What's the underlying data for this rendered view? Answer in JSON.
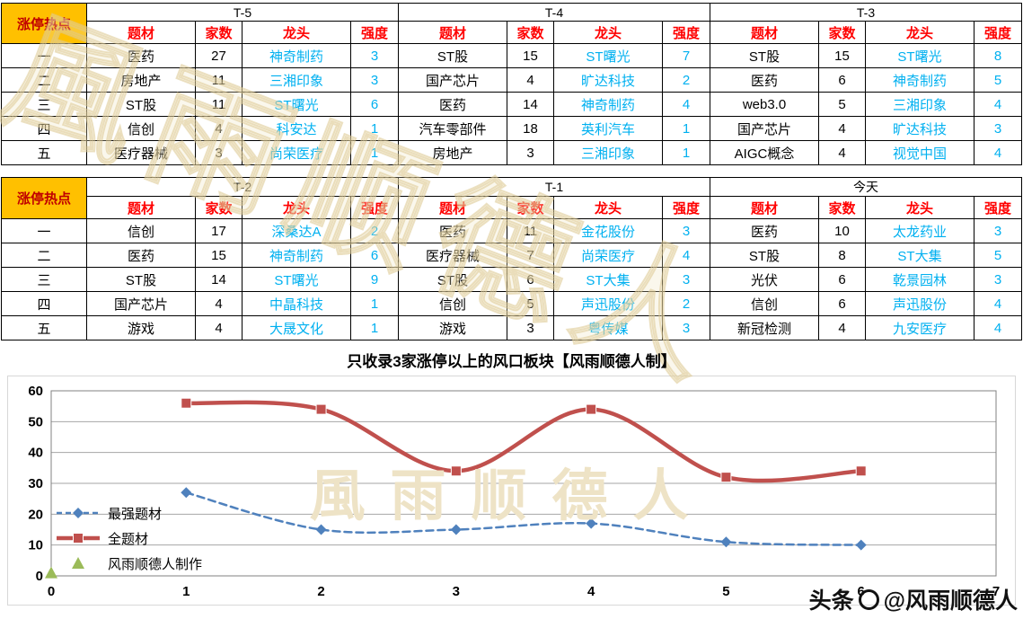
{
  "watermark": {
    "text": "風雨顺德人"
  },
  "tables": {
    "corner_label": "涨停热点",
    "columns": [
      "题材",
      "家数",
      "龙头",
      "强度"
    ],
    "row_labels": [
      "一",
      "二",
      "三",
      "四",
      "五"
    ],
    "blocks": [
      {
        "groups": [
          {
            "period": "T-5",
            "rows": [
              [
                "医药",
                "27",
                "神奇制药",
                "3"
              ],
              [
                "房地产",
                "11",
                "三湘印象",
                "3"
              ],
              [
                "ST股",
                "11",
                "ST曙光",
                "6"
              ],
              [
                "信创",
                "4",
                "科安达",
                "1"
              ],
              [
                "医疗器械",
                "3",
                "尚荣医疗",
                "1"
              ]
            ]
          },
          {
            "period": "T-4",
            "rows": [
              [
                "ST股",
                "15",
                "ST曙光",
                "7"
              ],
              [
                "国产芯片",
                "4",
                "旷达科技",
                "2"
              ],
              [
                "医药",
                "14",
                "神奇制药",
                "4"
              ],
              [
                "汽车零部件",
                "18",
                "英利汽车",
                "1"
              ],
              [
                "房地产",
                "3",
                "三湘印象",
                "1"
              ]
            ]
          },
          {
            "period": "T-3",
            "rows": [
              [
                "ST股",
                "15",
                "ST曙光",
                "8"
              ],
              [
                "医药",
                "6",
                "神奇制药",
                "5"
              ],
              [
                "web3.0",
                "5",
                "三湘印象",
                "4"
              ],
              [
                "国产芯片",
                "4",
                "旷达科技",
                "3"
              ],
              [
                "AIGC概念",
                "4",
                "视觉中国",
                "4"
              ]
            ]
          }
        ]
      },
      {
        "groups": [
          {
            "period": "T-2",
            "rows": [
              [
                "信创",
                "17",
                "深桑达A",
                "2"
              ],
              [
                "医药",
                "15",
                "神奇制药",
                "6"
              ],
              [
                "ST股",
                "14",
                "ST曙光",
                "9"
              ],
              [
                "国产芯片",
                "4",
                "中晶科技",
                "1"
              ],
              [
                "游戏",
                "4",
                "大晟文化",
                "1"
              ]
            ]
          },
          {
            "period": "T-1",
            "rows": [
              [
                "医药",
                "11",
                "金花股份",
                "3"
              ],
              [
                "医疗器械",
                "7",
                "尚荣医疗",
                "4"
              ],
              [
                "ST股",
                "6",
                "ST大集",
                "3"
              ],
              [
                "信创",
                "5",
                "声迅股份",
                "2"
              ],
              [
                "游戏",
                "3",
                "粤传媒",
                "3"
              ]
            ]
          },
          {
            "period": "今天",
            "rows": [
              [
                "医药",
                "10",
                "太龙药业",
                "3"
              ],
              [
                "ST股",
                "8",
                "ST大集",
                "5"
              ],
              [
                "光伏",
                "6",
                "乾景园林",
                "3"
              ],
              [
                "信创",
                "6",
                "声迅股份",
                "4"
              ],
              [
                "新冠检测",
                "4",
                "九安医疗",
                "4"
              ]
            ]
          }
        ]
      }
    ]
  },
  "caption": "只收录3家涨停以上的风口板块【风雨顺德人制】",
  "chart_data": {
    "type": "line",
    "title": "",
    "xlabel": "",
    "ylabel": "",
    "xlim": [
      0,
      7
    ],
    "ylim": [
      0,
      60
    ],
    "x_ticks": [
      0,
      1,
      2,
      3,
      4,
      5,
      6,
      7
    ],
    "y_ticks": [
      0,
      10,
      20,
      30,
      40,
      50,
      60
    ],
    "grid": true,
    "legend_position": "left-inside",
    "series": [
      {
        "name": "最强题材",
        "x": [
          1,
          2,
          3,
          4,
          5,
          6
        ],
        "values": [
          27,
          15,
          15,
          17,
          11,
          10
        ],
        "color": "#4F81BD",
        "style": "dashed",
        "marker": "diamond"
      },
      {
        "name": "全题材",
        "x": [
          1,
          2,
          3,
          4,
          5,
          6
        ],
        "values": [
          56,
          54,
          34,
          54,
          32,
          34
        ],
        "color": "#C0504D",
        "style": "solid",
        "marker": "square"
      },
      {
        "name": "风雨顺德人制作",
        "x": [
          0
        ],
        "values": [
          1
        ],
        "color": "#9BBB59",
        "style": "none",
        "marker": "triangle"
      }
    ]
  },
  "footer": {
    "brand": "头条",
    "handle": "@风雨顺德人"
  },
  "colors": {
    "accent_gold": "#FFC000",
    "header_red": "#FF0000",
    "link_cyan": "#00B0F0",
    "corner_text": "#C00000"
  }
}
